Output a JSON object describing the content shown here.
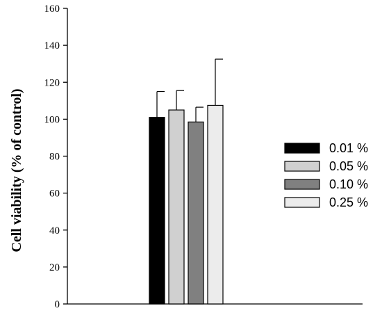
{
  "chart_data": {
    "type": "bar",
    "title": "",
    "xlabel": "",
    "ylabel": "Cell viability (% of control)",
    "ylim": [
      0,
      160
    ],
    "yticks": [
      0,
      20,
      40,
      60,
      80,
      100,
      120,
      140,
      160
    ],
    "grid": false,
    "legend_position": "right",
    "series": [
      {
        "name": "0.01 %",
        "value": 101,
        "error": 14,
        "color": "#000000"
      },
      {
        "name": "0.05 %",
        "value": 105,
        "error": 10.5,
        "color": "#d0d0d0"
      },
      {
        "name": "0.10 %",
        "value": 98.5,
        "error": 8,
        "color": "#808080"
      },
      {
        "name": "0.25 %",
        "value": 107.5,
        "error": 25,
        "color": "#ececec"
      }
    ]
  }
}
